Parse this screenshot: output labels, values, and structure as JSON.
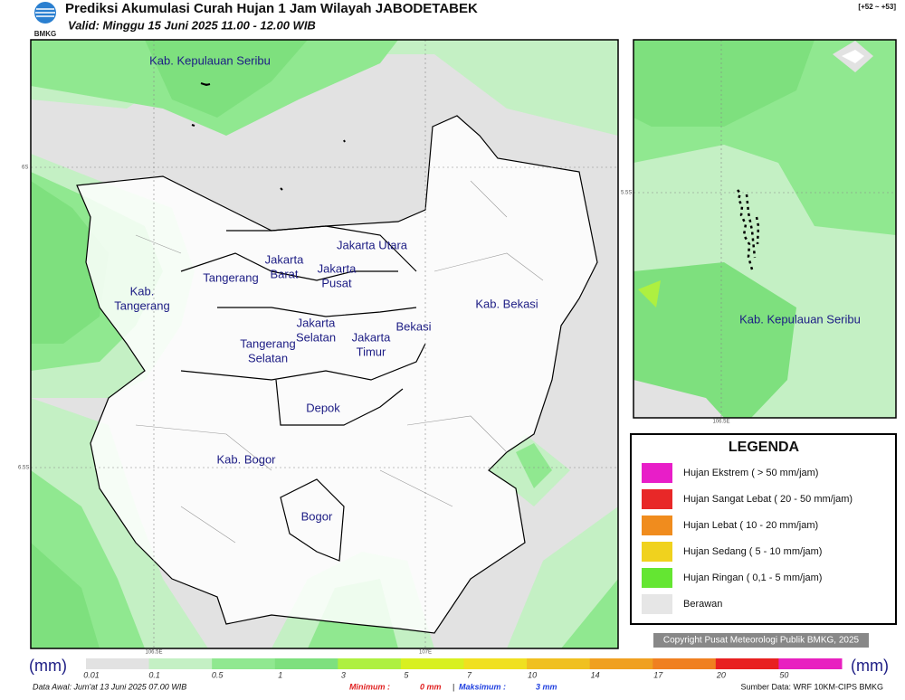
{
  "header": {
    "logo": "BMKG",
    "title": "Prediksi Akumulasi Curah Hujan 1 Jam Wilayah JABODETABEK",
    "valid": "Valid: Minggu 15 Juni 2025 11.00 - 12.00 WIB",
    "code": "[+52 ~ +53]"
  },
  "map": {
    "labels": [
      {
        "lines": [
          "Kab. Kepulauan Seribu"
        ]
      },
      {
        "lines": [
          "Jakarta Utara"
        ]
      },
      {
        "lines": [
          "Jakarta",
          "Barat"
        ]
      },
      {
        "lines": [
          "Jakarta",
          "Pusat"
        ]
      },
      {
        "lines": [
          "Tangerang"
        ]
      },
      {
        "lines": [
          "Kab. Bekasi"
        ]
      },
      {
        "lines": [
          "Kab.",
          "Tangerang"
        ]
      },
      {
        "lines": [
          "Jakarta",
          "Selatan"
        ]
      },
      {
        "lines": [
          "Bekasi"
        ]
      },
      {
        "lines": [
          "Jakarta",
          "Timur"
        ]
      },
      {
        "lines": [
          "Tangerang",
          "Selatan"
        ]
      },
      {
        "lines": [
          "Depok"
        ]
      },
      {
        "lines": [
          "Kab. Bogor"
        ]
      },
      {
        "lines": [
          "Bogor"
        ]
      }
    ],
    "axis_labels": [
      "6S",
      "6.5S",
      "106.5E",
      "107E"
    ]
  },
  "inset": {
    "label": "Kab. Kepulauan Seribu",
    "axis_labels": [
      "5.5S",
      "106.5E"
    ]
  },
  "legend": {
    "title": "LEGENDA",
    "items": [
      "Hujan Ekstrem ( > 50 mm/jam)",
      "Hujan Sangat Lebat ( 20 - 50 mm/jam)",
      "Hujan Lebat ( 10 - 20 mm/jam)",
      "Hujan Sedang ( 5 - 10 mm/jam)",
      "Hujan Ringan ( 0,1 - 5 mm/jam)",
      "Berawan"
    ]
  },
  "copyright": "Copyright Pusat Meteorologi Publik BMKG, 2025",
  "colorbar": {
    "unit": "(mm)",
    "ticks": [
      "0.01",
      "0.1",
      "0.5",
      "1",
      "3",
      "5",
      "7",
      "10",
      "14",
      "17",
      "20",
      "50"
    ]
  },
  "footer": {
    "data_awal": "Data Awal: Jum'at 13 Juni 2025 07.00 WIB",
    "min_label": "Minimum :",
    "min_value": "0 mm",
    "separator": "|",
    "max_label": "Maksimum :",
    "max_value": "3 mm",
    "source": "Sumber Data: WRF 10KM-CIPS BMKG"
  }
}
